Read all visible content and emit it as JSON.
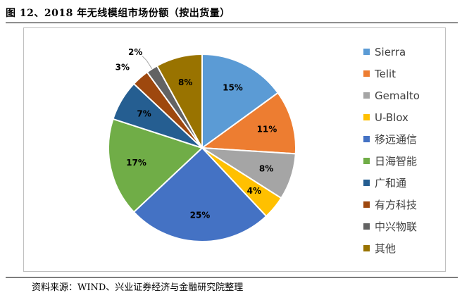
{
  "title": "图 12、2018 年无线模组市场份额（按出货量）",
  "source": "资料来源：WIND、兴业证券经济与金融研究院整理",
  "chart_data": {
    "type": "pie",
    "title": "",
    "start_angle_deg": 0,
    "direction": "clockwise",
    "legend_position": "right",
    "slices": [
      {
        "label": "Sierra",
        "value": 15,
        "display": "15%",
        "color": "#5b9bd5"
      },
      {
        "label": "Telit",
        "value": 11,
        "display": "11%",
        "color": "#ed7d31"
      },
      {
        "label": "Gemalto",
        "value": 8,
        "display": "8%",
        "color": "#a5a5a5"
      },
      {
        "label": "U-Blox",
        "value": 4,
        "display": "4%",
        "color": "#ffc000"
      },
      {
        "label": "移远通信",
        "value": 25,
        "display": "25%",
        "color": "#4472c4"
      },
      {
        "label": "日海智能",
        "value": 17,
        "display": "17%",
        "color": "#70ad47"
      },
      {
        "label": "广和通",
        "value": 7,
        "display": "7%",
        "color": "#255e91"
      },
      {
        "label": "有方科技",
        "value": 3,
        "display": "3%",
        "color": "#9e480e"
      },
      {
        "label": "中兴物联",
        "value": 2,
        "display": "2%",
        "color": "#636363"
      },
      {
        "label": "其他",
        "value": 8,
        "display": "8%",
        "color": "#997300"
      }
    ]
  }
}
